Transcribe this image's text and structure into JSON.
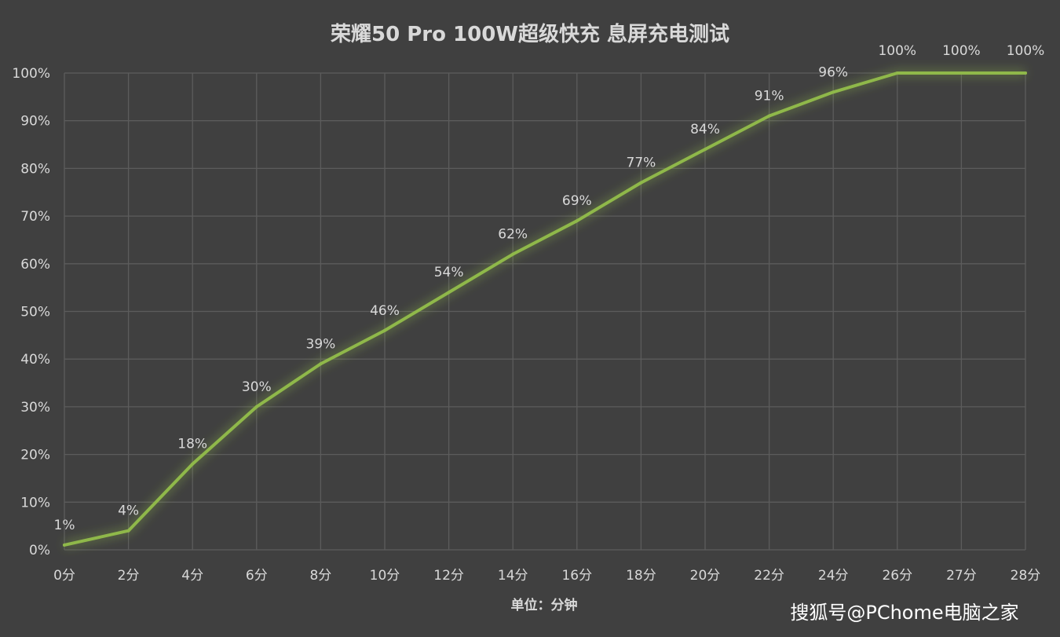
{
  "watermark": "搜狐号@PChome电脑之家",
  "chart_data": {
    "type": "line",
    "title": "荣耀50 Pro 100W超级快充 息屏充电测试",
    "xlabel": "单位：分钟",
    "ylabel": "",
    "categories": [
      "0分",
      "2分",
      "4分",
      "6分",
      "8分",
      "10分",
      "12分",
      "14分",
      "16分",
      "18分",
      "20分",
      "22分",
      "24分",
      "26分",
      "27分",
      "28分"
    ],
    "series": [
      {
        "values": [
          1,
          4,
          18,
          30,
          39,
          46,
          54,
          62,
          69,
          77,
          84,
          91,
          96,
          100,
          100,
          100
        ]
      }
    ],
    "data_labels": [
      "1%",
      "4%",
      "18%",
      "30%",
      "39%",
      "46%",
      "54%",
      "62%",
      "69%",
      "77%",
      "84%",
      "91%",
      "96%",
      "100%",
      "100%",
      "100%"
    ],
    "yticks": [
      "0%",
      "10%",
      "20%",
      "30%",
      "40%",
      "50%",
      "60%",
      "70%",
      "80%",
      "90%",
      "100%"
    ],
    "ylim": [
      0,
      100
    ],
    "grid": true,
    "legend": "none",
    "colors": {
      "line": "#8fb84a",
      "background": "#404040",
      "grid": "#5c5c5c",
      "text": "#d9d9d9"
    }
  }
}
